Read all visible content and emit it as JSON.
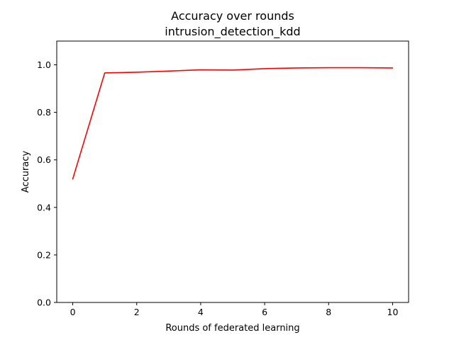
{
  "chart_data": {
    "type": "line",
    "title": "Accuracy over rounds",
    "subtitle": "intrusion_detection_kdd",
    "xlabel": "Rounds of federated learning",
    "ylabel": "Accuracy",
    "xlim": [
      -0.5,
      10.5
    ],
    "ylim": [
      0.0,
      1.1
    ],
    "xticks": [
      0,
      2,
      4,
      6,
      8,
      10
    ],
    "xtick_labels": [
      "0",
      "2",
      "4",
      "6",
      "8",
      "10"
    ],
    "yticks": [
      0.0,
      0.2,
      0.4,
      0.6,
      0.8,
      1.0
    ],
    "ytick_labels": [
      "0.0",
      "0.2",
      "0.4",
      "0.6",
      "0.8",
      "1.0"
    ],
    "grid": false,
    "series": [
      {
        "color": "#ff0000",
        "x": [
          0,
          1,
          2,
          3,
          4,
          5,
          6,
          7,
          8,
          9,
          10
        ],
        "y": [
          0.52,
          0.966,
          0.969,
          0.974,
          0.979,
          0.978,
          0.984,
          0.987,
          0.988,
          0.988,
          0.987
        ]
      }
    ]
  }
}
